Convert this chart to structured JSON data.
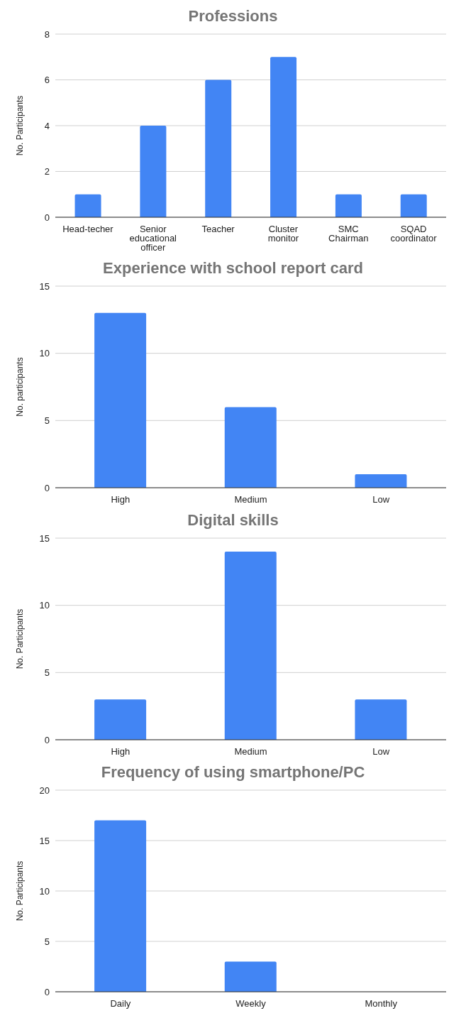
{
  "chart_data": [
    {
      "type": "bar",
      "title": "Professions",
      "ylabel": "No. Participants",
      "categories": [
        "Head-techer",
        "Senior educational officer",
        "Teacher",
        "Cluster monitor",
        "SMC Chairman",
        "SQAD coordinator"
      ],
      "values": [
        1,
        4,
        6,
        7,
        1,
        1
      ],
      "color": "#4285f4",
      "ylim": [
        0,
        8
      ],
      "yticks": [
        0,
        2,
        4,
        6,
        8
      ],
      "grid": "y"
    },
    {
      "type": "bar",
      "title": "Experience with school report card",
      "ylabel": "No. participants",
      "categories": [
        "High",
        "Medium",
        "Low"
      ],
      "values": [
        13,
        6,
        1
      ],
      "color": "#4285f4",
      "ylim": [
        0,
        15
      ],
      "yticks": [
        0,
        5,
        10,
        15
      ],
      "grid": "y"
    },
    {
      "type": "bar",
      "title": "Digital skills",
      "ylabel": "No. Participants",
      "categories": [
        "High",
        "Medium",
        "Low"
      ],
      "values": [
        3,
        14,
        3
      ],
      "color": "#4285f4",
      "ylim": [
        0,
        15
      ],
      "yticks": [
        0,
        5,
        10,
        15
      ],
      "grid": "y"
    },
    {
      "type": "bar",
      "title": "Frequency of using smartphone/PC",
      "ylabel": "No. Participants",
      "categories": [
        "Daily",
        "Weekly",
        "Monthly"
      ],
      "values": [
        17,
        3,
        0
      ],
      "color": "#4285f4",
      "ylim": [
        0,
        20
      ],
      "yticks": [
        0,
        5,
        10,
        15,
        20
      ],
      "grid": "y"
    }
  ]
}
